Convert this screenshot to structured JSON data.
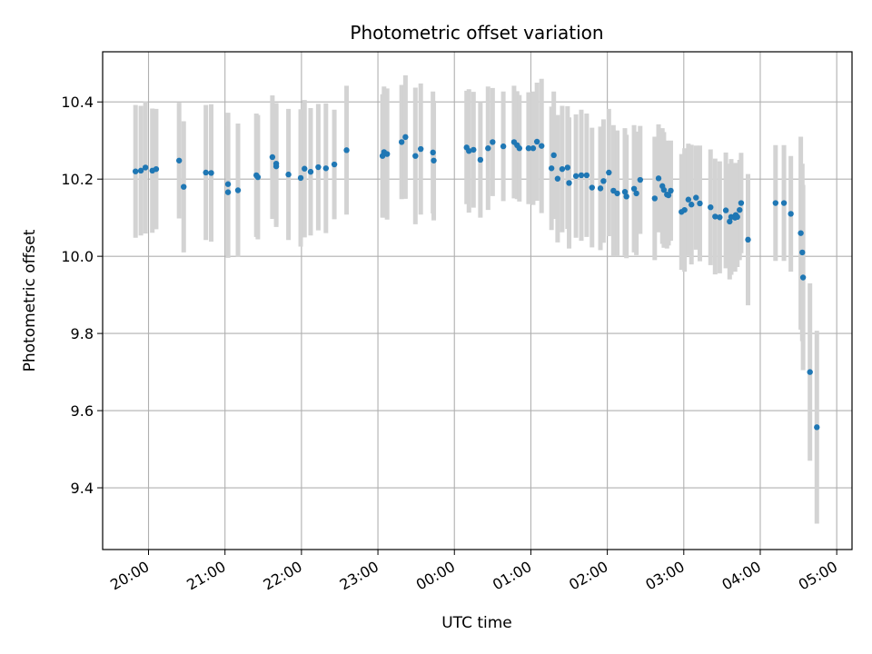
{
  "chart_data": {
    "type": "scatter",
    "title": "Photometric offset variation",
    "xlabel": "UTC time",
    "ylabel": "Photometric offset",
    "x_unit": "hours (UTC, continuing past midnight as 24+)",
    "xlim": [
      19.4,
      29.2
    ],
    "ylim": [
      9.24,
      10.53
    ],
    "grid": true,
    "x_ticks": [
      {
        "value": 20,
        "label": "20:00"
      },
      {
        "value": 21,
        "label": "21:00"
      },
      {
        "value": 22,
        "label": "22:00"
      },
      {
        "value": 23,
        "label": "23:00"
      },
      {
        "value": 24,
        "label": "00:00"
      },
      {
        "value": 25,
        "label": "01:00"
      },
      {
        "value": 26,
        "label": "02:00"
      },
      {
        "value": 27,
        "label": "03:00"
      },
      {
        "value": 28,
        "label": "04:00"
      },
      {
        "value": 29,
        "label": "05:00"
      }
    ],
    "y_ticks": [
      {
        "value": 9.4,
        "label": "9.4"
      },
      {
        "value": 9.6,
        "label": "9.6"
      },
      {
        "value": 9.8,
        "label": "9.8"
      },
      {
        "value": 10.0,
        "label": "10.0"
      },
      {
        "value": 10.2,
        "label": "10.2"
      },
      {
        "value": 10.4,
        "label": "10.4"
      }
    ],
    "colors": {
      "points": "#1f77b4",
      "errorbars": "#d3d3d3",
      "grid": "#b0b0b0"
    },
    "points": [
      [
        19.83,
        10.22,
        0.172
      ],
      [
        19.9,
        10.222,
        0.168
      ],
      [
        19.96,
        10.23,
        0.171
      ],
      [
        20.05,
        10.222,
        0.161
      ],
      [
        20.1,
        10.226,
        0.156
      ],
      [
        20.4,
        10.248,
        0.15
      ],
      [
        20.46,
        10.18,
        0.17
      ],
      [
        20.75,
        10.217,
        0.175
      ],
      [
        20.82,
        10.216,
        0.178
      ],
      [
        21.04,
        10.187,
        0.185
      ],
      [
        21.04,
        10.166,
        0.17
      ],
      [
        21.17,
        10.171,
        0.173
      ],
      [
        21.41,
        10.21,
        0.16
      ],
      [
        21.43,
        10.205,
        0.161
      ],
      [
        21.62,
        10.257,
        0.16
      ],
      [
        21.67,
        10.24,
        0.157
      ],
      [
        21.67,
        10.233,
        0.157
      ],
      [
        21.83,
        10.212,
        0.17
      ],
      [
        21.99,
        10.203,
        0.178
      ],
      [
        22.04,
        10.227,
        0.178
      ],
      [
        22.12,
        10.219,
        0.165
      ],
      [
        22.22,
        10.231,
        0.164
      ],
      [
        22.32,
        10.228,
        0.168
      ],
      [
        22.43,
        10.238,
        0.142
      ],
      [
        22.59,
        10.275,
        0.167
      ],
      [
        23.06,
        10.26,
        0.16
      ],
      [
        23.08,
        10.27,
        0.17
      ],
      [
        23.12,
        10.265,
        0.17
      ],
      [
        23.31,
        10.296,
        0.148
      ],
      [
        23.36,
        10.309,
        0.16
      ],
      [
        23.49,
        10.26,
        0.177
      ],
      [
        23.56,
        10.278,
        0.17
      ],
      [
        23.72,
        10.269,
        0.158
      ],
      [
        23.73,
        10.248,
        0.155
      ],
      [
        24.16,
        10.282,
        0.147
      ],
      [
        24.19,
        10.273,
        0.16
      ],
      [
        24.25,
        10.276,
        0.15
      ],
      [
        24.34,
        10.25,
        0.15
      ],
      [
        24.44,
        10.28,
        0.16
      ],
      [
        24.5,
        10.296,
        0.14
      ],
      [
        24.64,
        10.285,
        0.142
      ],
      [
        24.78,
        10.296,
        0.146
      ],
      [
        24.82,
        10.288,
        0.14
      ],
      [
        24.85,
        10.28,
        0.138
      ],
      [
        24.97,
        10.28,
        0.145
      ],
      [
        25.03,
        10.28,
        0.147
      ],
      [
        25.08,
        10.297,
        0.153
      ],
      [
        25.14,
        10.286,
        0.174
      ],
      [
        25.27,
        10.228,
        0.16
      ],
      [
        25.3,
        10.262,
        0.165
      ],
      [
        25.35,
        10.201,
        0.165
      ],
      [
        25.41,
        10.226,
        0.164
      ],
      [
        25.48,
        10.23,
        0.159
      ],
      [
        25.5,
        10.19,
        0.17
      ],
      [
        25.59,
        10.208,
        0.16
      ],
      [
        25.66,
        10.21,
        0.17
      ],
      [
        25.73,
        10.21,
        0.16
      ],
      [
        25.8,
        10.178,
        0.155
      ],
      [
        25.91,
        10.176,
        0.16
      ],
      [
        25.95,
        10.195,
        0.16
      ],
      [
        26.02,
        10.217,
        0.165
      ],
      [
        26.08,
        10.17,
        0.17
      ],
      [
        26.13,
        10.163,
        0.163
      ],
      [
        26.23,
        10.167,
        0.165
      ],
      [
        26.25,
        10.155,
        0.16
      ],
      [
        26.35,
        10.175,
        0.165
      ],
      [
        26.38,
        10.163,
        0.16
      ],
      [
        26.43,
        10.198,
        0.14
      ],
      [
        26.62,
        10.15,
        0.16
      ],
      [
        26.67,
        10.202,
        0.14
      ],
      [
        26.72,
        10.182,
        0.15
      ],
      [
        26.74,
        10.172,
        0.15
      ],
      [
        26.78,
        10.16,
        0.14
      ],
      [
        26.8,
        10.158,
        0.13
      ],
      [
        26.83,
        10.17,
        0.13
      ],
      [
        26.97,
        10.115,
        0.15
      ],
      [
        27.01,
        10.12,
        0.16
      ],
      [
        27.06,
        10.147,
        0.145
      ],
      [
        27.1,
        10.134,
        0.155
      ],
      [
        27.16,
        10.152,
        0.135
      ],
      [
        27.21,
        10.137,
        0.15
      ],
      [
        27.35,
        10.127,
        0.15
      ],
      [
        27.41,
        10.103,
        0.15
      ],
      [
        27.47,
        10.101,
        0.145
      ],
      [
        27.55,
        10.119,
        0.15
      ],
      [
        27.6,
        10.09,
        0.15
      ],
      [
        27.62,
        10.102,
        0.15
      ],
      [
        27.67,
        10.1,
        0.14
      ],
      [
        27.68,
        10.107,
        0.135
      ],
      [
        27.7,
        10.102,
        0.13
      ],
      [
        27.73,
        10.12,
        0.13
      ],
      [
        27.75,
        10.138,
        0.13
      ],
      [
        27.84,
        10.043,
        0.17
      ],
      [
        28.2,
        10.138,
        0.15
      ],
      [
        28.31,
        10.138,
        0.15
      ],
      [
        28.4,
        10.11,
        0.15
      ],
      [
        28.53,
        10.06,
        0.25
      ],
      [
        28.55,
        10.01,
        0.23
      ],
      [
        28.56,
        9.945,
        0.24
      ],
      [
        28.65,
        9.7,
        0.23
      ],
      [
        28.74,
        9.557,
        0.25
      ]
    ]
  }
}
